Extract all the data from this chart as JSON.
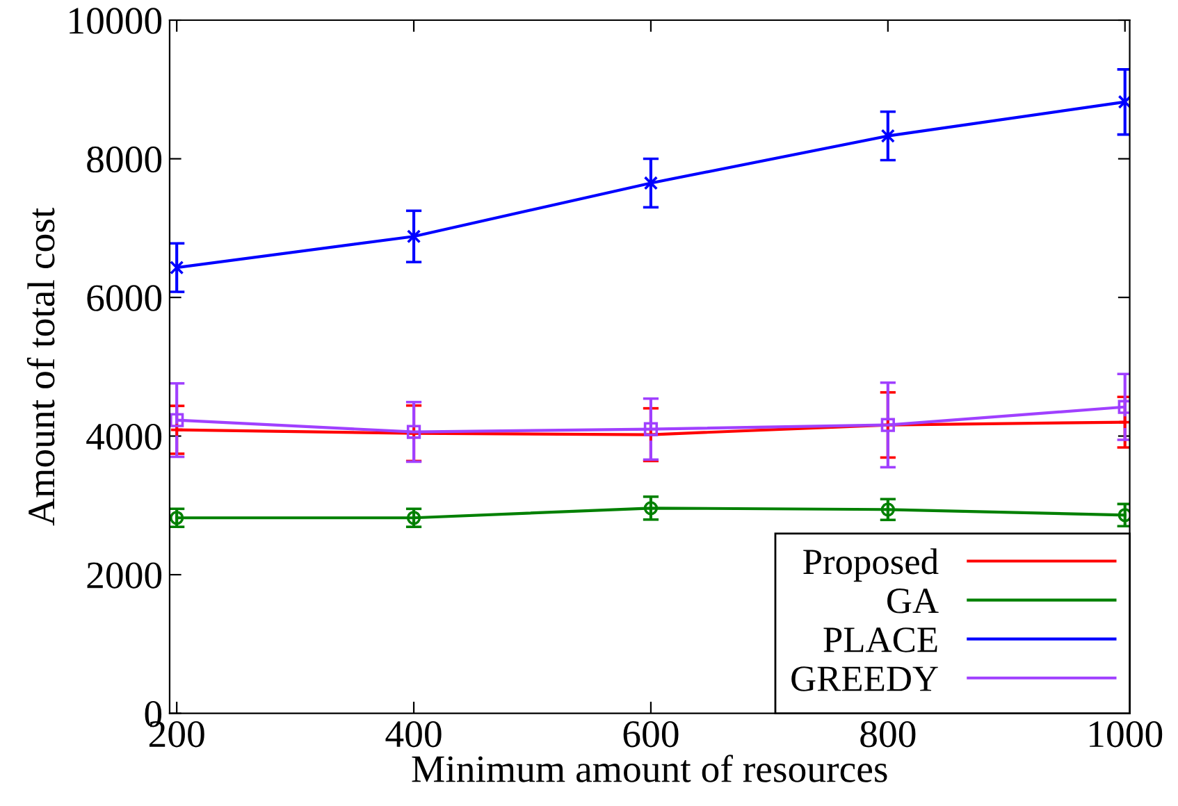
{
  "chart_data": {
    "type": "line",
    "xlabel": "Minimum amount of resources",
    "ylabel": "Amount of total cost",
    "x": [
      200,
      400,
      600,
      800,
      1000
    ],
    "xlim": [
      194,
      1004
    ],
    "xticks": [
      200,
      400,
      600,
      800,
      1000
    ],
    "ylim": [
      0,
      10000
    ],
    "yticks": [
      0,
      2000,
      4000,
      6000,
      8000,
      10000
    ],
    "grid": false,
    "legend": "bottom right",
    "series": [
      {
        "name": "Proposed",
        "color": "#ff0000",
        "marker": "plus",
        "values": [
          4090,
          4040,
          4020,
          4160,
          4200
        ],
        "errors": [
          345,
          400,
          380,
          470,
          365
        ]
      },
      {
        "name": "GA",
        "color": "#008000",
        "marker": "circle",
        "values": [
          2820,
          2820,
          2960,
          2940,
          2860
        ],
        "errors": [
          130,
          130,
          165,
          150,
          160
        ]
      },
      {
        "name": "PLACE",
        "color": "#0000ff",
        "marker": "cross",
        "values": [
          6430,
          6880,
          7650,
          8330,
          8820
        ],
        "errors": [
          350,
          370,
          350,
          350,
          470
        ]
      },
      {
        "name": "GREEDY",
        "color": "#a040ff",
        "marker": "square",
        "values": [
          4230,
          4060,
          4100,
          4160,
          4420
        ],
        "errors": [
          530,
          430,
          440,
          610,
          475
        ]
      }
    ]
  }
}
